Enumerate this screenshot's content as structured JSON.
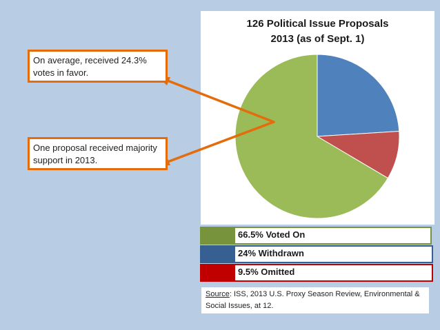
{
  "chart_data": {
    "type": "pie",
    "title": "126 Political Issue Proposals",
    "subtitle": "2013 (as of Sept. 1)",
    "slices": [
      {
        "name": "Withdrawn",
        "value": 24.0,
        "color": "#4f81bd"
      },
      {
        "name": "Omitted",
        "value": 9.5,
        "color": "#c0504d"
      },
      {
        "name": "Voted On",
        "value": 66.5,
        "color": "#9bbb59"
      }
    ],
    "start_angle_deg": 0,
    "direction": "clockwise",
    "legend": [
      {
        "label": "66.5% Voted On",
        "swatch_color": "#77933c"
      },
      {
        "label": "24% Withdrawn",
        "swatch_color": "#376092"
      },
      {
        "label": "9.5% Omitted",
        "swatch_color": "#c00000"
      }
    ]
  },
  "callouts": [
    {
      "text": "On average, received 24.3% votes in favor."
    },
    {
      "text": "One proposal received majority support in 2013."
    }
  ],
  "source": {
    "label": "Source",
    "text": ": ISS, 2013 U.S. Proxy Season Review, Environmental & Social Issues, at 12."
  },
  "colors": {
    "background": "#b8cce4",
    "callout_border": "#e46c0a",
    "arrow": "#e46c0a"
  }
}
